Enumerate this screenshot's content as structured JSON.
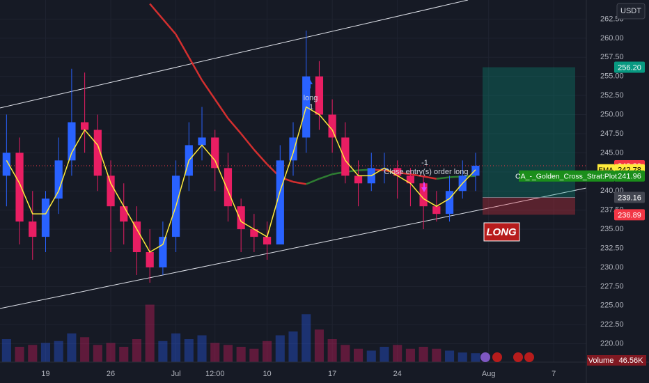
{
  "chart_data": {
    "type": "candlestick",
    "currency": "USDT",
    "categories": [
      null,
      null,
      null,
      "19",
      null,
      null,
      null,
      null,
      "26",
      null,
      null,
      null,
      null,
      "Jul",
      null,
      null,
      "12:00",
      null,
      null,
      null,
      "10",
      null,
      null,
      null,
      null,
      "17",
      null,
      null,
      null,
      null,
      "24",
      null,
      null,
      null,
      null,
      null,
      null,
      "Aug",
      null,
      null,
      null,
      null,
      "7",
      null,
      null
    ],
    "ohlc": [
      [
        242,
        250,
        238,
        245
      ],
      [
        245,
        247,
        233,
        236
      ],
      [
        236,
        240,
        231,
        234
      ],
      [
        234,
        240,
        232,
        239
      ],
      [
        239,
        247,
        237,
        244
      ],
      [
        244,
        256,
        242,
        249
      ],
      [
        249,
        255.5,
        245,
        248
      ],
      [
        248,
        250,
        240,
        242
      ],
      [
        242,
        244,
        232,
        238
      ],
      [
        238,
        241,
        233,
        236
      ],
      [
        236,
        238,
        229,
        232
      ],
      [
        232,
        235,
        228,
        230
      ],
      [
        230,
        236,
        229,
        234
      ],
      [
        234,
        244,
        232,
        242
      ],
      [
        242,
        249,
        240,
        246
      ],
      [
        246,
        251,
        244,
        247
      ],
      [
        247,
        248,
        240,
        243
      ],
      [
        243,
        245,
        236,
        238
      ],
      [
        238,
        239,
        232,
        235
      ],
      [
        235,
        237,
        232,
        234
      ],
      [
        234,
        236,
        231,
        233
      ],
      [
        233,
        246,
        233,
        244
      ],
      [
        244,
        249,
        242,
        247
      ],
      [
        247,
        261,
        245,
        255
      ],
      [
        255,
        257,
        248,
        250
      ],
      [
        250,
        252,
        245,
        247
      ],
      [
        247,
        249,
        241,
        242
      ],
      [
        242,
        244,
        238,
        241
      ],
      [
        241,
        245,
        240,
        243
      ],
      [
        243,
        245,
        241,
        243
      ],
      [
        243,
        244,
        239,
        242
      ],
      [
        242,
        243,
        238,
        241
      ],
      [
        241,
        242,
        235,
        238
      ],
      [
        238,
        240,
        236,
        237
      ],
      [
        237,
        242,
        236,
        240
      ],
      [
        240,
        244,
        239,
        242
      ],
      [
        242,
        245,
        240,
        243.3
      ],
      null,
      null,
      null,
      null,
      null,
      null,
      null,
      null
    ],
    "up_color": "#2962ff",
    "down_color": "#e91e63",
    "ema": {
      "name": "EMA",
      "color": "#ffeb3b",
      "values": [
        244,
        241,
        237,
        237,
        240,
        245,
        248,
        246,
        241,
        238,
        235,
        232,
        233,
        238,
        244,
        246,
        244,
        240,
        236,
        235,
        234,
        240,
        245,
        251,
        250,
        248,
        244,
        242,
        242,
        243,
        242,
        241,
        239,
        238,
        239,
        241,
        242.78,
        null,
        null,
        null,
        null,
        null,
        null,
        null,
        null
      ]
    },
    "strategy": {
      "name": "CA_-_Golden_Cross_Strat:Plot",
      "rising_color": "#2e7d32",
      "falling_color": "#d32f2f",
      "values": [
        null,
        null,
        null,
        null,
        null,
        null,
        null,
        null,
        null,
        null,
        null,
        264.5,
        262.5,
        260.5,
        257.5,
        254.5,
        252,
        249.5,
        247.5,
        245.4,
        243.5,
        241.8,
        241.2,
        240.9,
        241.6,
        242.2,
        242.5,
        242.7,
        242.8,
        242.7,
        242.4,
        242.2,
        241.9,
        241.6,
        241.8,
        241.9,
        241.96,
        null,
        null,
        null,
        null,
        null,
        null,
        null,
        null
      ]
    },
    "volume": {
      "name": "Volume",
      "ylim": [
        0,
        400
      ],
      "values": [
        120,
        80,
        90,
        100,
        110,
        150,
        130,
        90,
        100,
        80,
        120,
        300,
        110,
        150,
        120,
        140,
        100,
        90,
        80,
        70,
        110,
        140,
        160,
        250,
        170,
        120,
        90,
        70,
        60,
        80,
        90,
        70,
        80,
        70,
        60,
        50,
        46.56,
        null,
        null,
        null,
        null,
        null,
        null,
        null,
        null
      ],
      "last_label": "46.56K"
    },
    "last_price": {
      "value": 243.3,
      "label": "243.30"
    },
    "position": {
      "label": "LONG",
      "target": {
        "value": 256.2,
        "label": "256.20"
      },
      "entry": {
        "value": 239.16,
        "label": "239.16"
      },
      "stop": {
        "value": 236.89,
        "label": "236.89"
      }
    },
    "annotations": {
      "entry_text": "long",
      "entry_qty": "1",
      "exit_qty": "-1",
      "exit_text": "Close entry(s) order long"
    },
    "ylim": [
      217.6,
      265
    ],
    "yticks": [
      {
        "value": 220,
        "label": "220.00"
      },
      {
        "value": 222.5,
        "label": "222.50"
      },
      {
        "value": 225,
        "label": "225.00"
      },
      {
        "value": 227.5,
        "label": "227.50"
      },
      {
        "value": 230,
        "label": "230.00"
      },
      {
        "value": 232.5,
        "label": "232.50"
      },
      {
        "value": 235,
        "label": "235.00"
      },
      {
        "value": 237.5,
        "label": "237.50"
      },
      {
        "value": 240,
        "label": "240.00"
      },
      {
        "value": 242.5,
        "label": "242.50"
      },
      {
        "value": 245,
        "label": "245.00"
      },
      {
        "value": 247.5,
        "label": "247.50"
      },
      {
        "value": 250,
        "label": "250.00"
      },
      {
        "value": 252.5,
        "label": "252.50"
      },
      {
        "value": 255,
        "label": "255.00"
      },
      {
        "value": 257.5,
        "label": "257.50"
      },
      {
        "value": 260,
        "label": "260.00"
      },
      {
        "value": 262.5,
        "label": "262.50"
      }
    ],
    "grid": true
  }
}
